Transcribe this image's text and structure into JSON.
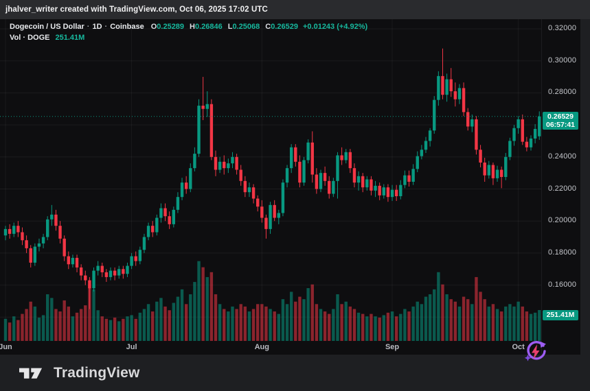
{
  "top_bar": {
    "attribution": "jhalver_writer created with TradingView.com, Oct 06, 2025 17:02 UTC"
  },
  "legend": {
    "symbol": "Dogecoin / US Dollar",
    "separator": "·",
    "interval": "1D",
    "exchange": "Coinbase",
    "o_label": "O",
    "o_value": "0.25289",
    "h_label": "H",
    "h_value": "0.26846",
    "l_label": "L",
    "l_value": "0.25068",
    "c_label": "C",
    "c_value": "0.26529",
    "change": "+0.01243 (+4.92%)",
    "vol_label": "Vol · DOGE",
    "vol_value": "251.41M"
  },
  "price_tag": {
    "value": "0.26529",
    "countdown": "06:57:41"
  },
  "volume_tag": {
    "value": "251.41M"
  },
  "time_axis": {
    "ticks": [
      {
        "label": "Jun",
        "index": 0
      },
      {
        "label": "Jul",
        "index": 30
      },
      {
        "label": "Aug",
        "index": 61
      },
      {
        "label": "Sep",
        "index": 92
      },
      {
        "label": "Oct",
        "index": 122
      }
    ]
  },
  "footer": {
    "brand": "TradingView"
  },
  "chart_data": {
    "type": "candlestick+volume",
    "title": "Dogecoin / US Dollar",
    "exchange": "Coinbase",
    "interval": "1D",
    "start_date": "2025-06-01",
    "end_date": "2025-10-06",
    "y_axis": {
      "min": 0.14,
      "max": 0.32,
      "tick_step": 0.02,
      "ticks": [
        0.32,
        0.3,
        0.28,
        0.26,
        0.24,
        0.22,
        0.2,
        0.18,
        0.16,
        0.14
      ]
    },
    "last": {
      "open": 0.25289,
      "high": 0.26846,
      "low": 0.25068,
      "close": 0.26529,
      "change": "+0.01243",
      "change_pct": "+4.92%",
      "volume": "251.41M"
    },
    "colors": {
      "up": "#089981",
      "down": "#f23645",
      "vol_up": "rgba(8,153,129,0.55)",
      "vol_down": "rgba(242,54,69,0.55)",
      "last_price_line": "#089981"
    },
    "ohlc_format": [
      "open",
      "high",
      "low",
      "close",
      "volume_millions"
    ],
    "candles": [
      [
        0.191,
        0.197,
        0.188,
        0.195,
        180
      ],
      [
        0.195,
        0.198,
        0.189,
        0.192,
        150
      ],
      [
        0.192,
        0.199,
        0.19,
        0.197,
        200
      ],
      [
        0.197,
        0.2,
        0.19,
        0.193,
        170
      ],
      [
        0.193,
        0.196,
        0.185,
        0.188,
        220
      ],
      [
        0.188,
        0.191,
        0.18,
        0.183,
        260
      ],
      [
        0.183,
        0.185,
        0.171,
        0.174,
        320
      ],
      [
        0.174,
        0.186,
        0.172,
        0.184,
        280
      ],
      [
        0.184,
        0.189,
        0.181,
        0.186,
        190
      ],
      [
        0.186,
        0.192,
        0.183,
        0.19,
        210
      ],
      [
        0.19,
        0.203,
        0.188,
        0.201,
        380
      ],
      [
        0.201,
        0.21,
        0.197,
        0.204,
        350
      ],
      [
        0.204,
        0.207,
        0.194,
        0.197,
        260
      ],
      [
        0.197,
        0.2,
        0.186,
        0.189,
        240
      ],
      [
        0.189,
        0.191,
        0.175,
        0.178,
        330
      ],
      [
        0.178,
        0.181,
        0.17,
        0.173,
        280
      ],
      [
        0.173,
        0.179,
        0.171,
        0.177,
        200
      ],
      [
        0.177,
        0.179,
        0.168,
        0.171,
        230
      ],
      [
        0.171,
        0.173,
        0.163,
        0.166,
        260
      ],
      [
        0.166,
        0.169,
        0.16,
        0.163,
        290
      ],
      [
        0.163,
        0.165,
        0.145,
        0.158,
        460
      ],
      [
        0.158,
        0.171,
        0.156,
        0.169,
        420
      ],
      [
        0.169,
        0.175,
        0.166,
        0.172,
        250
      ],
      [
        0.172,
        0.174,
        0.165,
        0.168,
        200
      ],
      [
        0.168,
        0.17,
        0.162,
        0.165,
        180
      ],
      [
        0.165,
        0.171,
        0.163,
        0.169,
        170
      ],
      [
        0.169,
        0.171,
        0.163,
        0.166,
        190
      ],
      [
        0.166,
        0.172,
        0.164,
        0.17,
        160
      ],
      [
        0.17,
        0.172,
        0.164,
        0.167,
        180
      ],
      [
        0.167,
        0.174,
        0.165,
        0.172,
        200
      ],
      [
        0.172,
        0.18,
        0.17,
        0.178,
        210
      ],
      [
        0.178,
        0.181,
        0.172,
        0.175,
        180
      ],
      [
        0.175,
        0.184,
        0.173,
        0.182,
        230
      ],
      [
        0.182,
        0.192,
        0.18,
        0.19,
        260
      ],
      [
        0.19,
        0.199,
        0.188,
        0.197,
        300
      ],
      [
        0.197,
        0.2,
        0.19,
        0.193,
        240
      ],
      [
        0.193,
        0.204,
        0.191,
        0.202,
        320
      ],
      [
        0.202,
        0.211,
        0.199,
        0.208,
        350
      ],
      [
        0.208,
        0.211,
        0.2,
        0.203,
        280
      ],
      [
        0.203,
        0.206,
        0.195,
        0.198,
        250
      ],
      [
        0.198,
        0.209,
        0.196,
        0.207,
        310
      ],
      [
        0.207,
        0.218,
        0.205,
        0.215,
        360
      ],
      [
        0.215,
        0.227,
        0.213,
        0.224,
        420
      ],
      [
        0.224,
        0.228,
        0.217,
        0.22,
        300
      ],
      [
        0.22,
        0.236,
        0.218,
        0.233,
        380
      ],
      [
        0.233,
        0.246,
        0.231,
        0.242,
        480
      ],
      [
        0.242,
        0.276,
        0.24,
        0.272,
        650
      ],
      [
        0.272,
        0.29,
        0.263,
        0.27,
        600
      ],
      [
        0.27,
        0.281,
        0.265,
        0.273,
        520
      ],
      [
        0.273,
        0.276,
        0.238,
        0.24,
        560
      ],
      [
        0.24,
        0.244,
        0.228,
        0.232,
        380
      ],
      [
        0.232,
        0.24,
        0.23,
        0.237,
        300
      ],
      [
        0.237,
        0.241,
        0.229,
        0.233,
        260
      ],
      [
        0.233,
        0.239,
        0.23,
        0.236,
        240
      ],
      [
        0.236,
        0.243,
        0.233,
        0.24,
        280
      ],
      [
        0.24,
        0.242,
        0.229,
        0.232,
        260
      ],
      [
        0.232,
        0.235,
        0.222,
        0.225,
        300
      ],
      [
        0.225,
        0.228,
        0.215,
        0.218,
        280
      ],
      [
        0.218,
        0.224,
        0.215,
        0.221,
        240
      ],
      [
        0.221,
        0.223,
        0.211,
        0.214,
        260
      ],
      [
        0.214,
        0.216,
        0.206,
        0.209,
        300
      ],
      [
        0.209,
        0.213,
        0.199,
        0.202,
        300
      ],
      [
        0.202,
        0.204,
        0.189,
        0.195,
        280
      ],
      [
        0.195,
        0.212,
        0.192,
        0.21,
        260
      ],
      [
        0.21,
        0.213,
        0.2,
        0.202,
        240
      ],
      [
        0.202,
        0.207,
        0.198,
        0.205,
        220
      ],
      [
        0.205,
        0.226,
        0.203,
        0.224,
        340
      ],
      [
        0.224,
        0.235,
        0.221,
        0.233,
        300
      ],
      [
        0.233,
        0.248,
        0.23,
        0.246,
        400
      ],
      [
        0.246,
        0.248,
        0.234,
        0.237,
        320
      ],
      [
        0.237,
        0.241,
        0.221,
        0.224,
        360
      ],
      [
        0.224,
        0.24,
        0.222,
        0.238,
        340
      ],
      [
        0.238,
        0.251,
        0.236,
        0.249,
        430
      ],
      [
        0.249,
        0.256,
        0.224,
        0.229,
        460
      ],
      [
        0.229,
        0.233,
        0.217,
        0.22,
        300
      ],
      [
        0.22,
        0.232,
        0.218,
        0.23,
        260
      ],
      [
        0.23,
        0.234,
        0.222,
        0.225,
        240
      ],
      [
        0.225,
        0.228,
        0.214,
        0.217,
        220
      ],
      [
        0.217,
        0.227,
        0.215,
        0.225,
        260
      ],
      [
        0.225,
        0.243,
        0.214,
        0.241,
        380
      ],
      [
        0.241,
        0.246,
        0.235,
        0.238,
        300
      ],
      [
        0.238,
        0.245,
        0.236,
        0.243,
        320
      ],
      [
        0.243,
        0.245,
        0.23,
        0.233,
        280
      ],
      [
        0.233,
        0.236,
        0.221,
        0.224,
        260
      ],
      [
        0.224,
        0.231,
        0.219,
        0.228,
        230
      ],
      [
        0.228,
        0.23,
        0.218,
        0.221,
        220
      ],
      [
        0.221,
        0.228,
        0.219,
        0.226,
        200
      ],
      [
        0.226,
        0.228,
        0.216,
        0.219,
        220
      ],
      [
        0.219,
        0.225,
        0.215,
        0.222,
        200
      ],
      [
        0.222,
        0.224,
        0.213,
        0.216,
        190
      ],
      [
        0.216,
        0.223,
        0.214,
        0.221,
        210
      ],
      [
        0.221,
        0.223,
        0.212,
        0.215,
        230
      ],
      [
        0.215,
        0.2225,
        0.2125,
        0.2195,
        240
      ],
      [
        0.2195,
        0.2225,
        0.2125,
        0.2155,
        200
      ],
      [
        0.2155,
        0.2255,
        0.2135,
        0.2225,
        220
      ],
      [
        0.2225,
        0.2315,
        0.2205,
        0.2285,
        260
      ],
      [
        0.2285,
        0.2315,
        0.2215,
        0.2245,
        240
      ],
      [
        0.2245,
        0.2355,
        0.2225,
        0.2325,
        280
      ],
      [
        0.2325,
        0.2435,
        0.2305,
        0.2405,
        320
      ],
      [
        0.2405,
        0.2475,
        0.2385,
        0.2445,
        300
      ],
      [
        0.2445,
        0.2525,
        0.2425,
        0.25,
        360
      ],
      [
        0.25,
        0.258,
        0.2465,
        0.2565,
        380
      ],
      [
        0.2565,
        0.278,
        0.2545,
        0.2756,
        420
      ],
      [
        0.2756,
        0.2935,
        0.272,
        0.2905,
        560
      ],
      [
        0.2905,
        0.3077,
        0.276,
        0.2788,
        460
      ],
      [
        0.2788,
        0.292,
        0.2745,
        0.2885,
        380
      ],
      [
        0.2885,
        0.2955,
        0.2775,
        0.281,
        340
      ],
      [
        0.281,
        0.2865,
        0.2715,
        0.276,
        320
      ],
      [
        0.276,
        0.2855,
        0.273,
        0.283,
        280
      ],
      [
        0.283,
        0.2865,
        0.2655,
        0.268,
        360
      ],
      [
        0.268,
        0.2705,
        0.2565,
        0.259,
        340
      ],
      [
        0.259,
        0.2665,
        0.2555,
        0.2635,
        300
      ],
      [
        0.2635,
        0.2655,
        0.2415,
        0.2445,
        520
      ],
      [
        0.2445,
        0.2475,
        0.2335,
        0.2365,
        400
      ],
      [
        0.2365,
        0.2395,
        0.2245,
        0.2285,
        340
      ],
      [
        0.2285,
        0.2375,
        0.2265,
        0.235,
        280
      ],
      [
        0.235,
        0.2365,
        0.2225,
        0.2267,
        300
      ],
      [
        0.2267,
        0.2345,
        0.2245,
        0.232,
        260
      ],
      [
        0.232,
        0.234,
        0.2205,
        0.2275,
        240
      ],
      [
        0.2275,
        0.2425,
        0.2255,
        0.24,
        280
      ],
      [
        0.24,
        0.252,
        0.238,
        0.25,
        300
      ],
      [
        0.25,
        0.26,
        0.247,
        0.258,
        280
      ],
      [
        0.258,
        0.2655,
        0.2545,
        0.2635,
        320
      ],
      [
        0.2635,
        0.2665,
        0.2475,
        0.2495,
        280
      ],
      [
        0.2495,
        0.2525,
        0.2435,
        0.246,
        240
      ],
      [
        0.246,
        0.2535,
        0.244,
        0.2515,
        220
      ],
      [
        0.2515,
        0.2605,
        0.2485,
        0.2575,
        230
      ],
      [
        0.25289,
        0.26846,
        0.25068,
        0.26529,
        251.41
      ]
    ]
  }
}
